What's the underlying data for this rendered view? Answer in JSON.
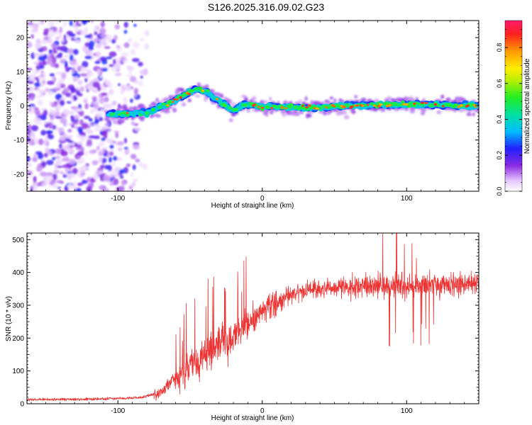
{
  "figure": {
    "title": "S126.2025.316.09.02.G23"
  },
  "chart_data": [
    {
      "type": "heatmap",
      "xlabel": "Height of straight line (km)",
      "ylabel": "Frequency (Hz)",
      "xlim": [
        -163,
        150
      ],
      "ylim": [
        -25,
        25
      ],
      "xticks": [
        -100,
        0,
        100
      ],
      "yticks": [
        -20,
        -10,
        0,
        10,
        20
      ],
      "colorbar": {
        "label": "Normalized spectral amplitude",
        "range": [
          0,
          0.95
        ],
        "ticks": [
          0.0,
          0.2,
          0.4,
          0.6,
          0.8
        ]
      },
      "ridge": {
        "description_points": [
          {
            "x": -105,
            "y": -2.5
          },
          {
            "x": -80,
            "y": -2.0
          },
          {
            "x": -68,
            "y": 0.0
          },
          {
            "x": -55,
            "y": 3.0
          },
          {
            "x": -45,
            "y": 5.0
          },
          {
            "x": -38,
            "y": 4.0
          },
          {
            "x": -30,
            "y": 1.5
          },
          {
            "x": -20,
            "y": -1.5
          },
          {
            "x": -12,
            "y": 0.5
          },
          {
            "x": 0,
            "y": -0.3
          },
          {
            "x": 40,
            "y": -0.5
          },
          {
            "x": 60,
            "y": 0.0
          },
          {
            "x": 100,
            "y": 0.5
          },
          {
            "x": 150,
            "y": 0.0
          }
        ]
      }
    },
    {
      "type": "line",
      "xlabel": "Height of straight line (km)",
      "ylabel": "SNR (10 * v/v)",
      "xlim": [
        -163,
        150
      ],
      "ylim": [
        0,
        520
      ],
      "xticks": [
        -100,
        0,
        100
      ],
      "yticks": [
        0,
        100,
        200,
        300,
        400,
        500
      ],
      "series": [
        {
          "name": "SNR",
          "color": "#ee3333",
          "trend_points": [
            {
              "x": -163,
              "y": 12
            },
            {
              "x": -120,
              "y": 14
            },
            {
              "x": -85,
              "y": 18
            },
            {
              "x": -70,
              "y": 35
            },
            {
              "x": -60,
              "y": 80
            },
            {
              "x": -50,
              "y": 110
            },
            {
              "x": -40,
              "y": 150
            },
            {
              "x": -30,
              "y": 175
            },
            {
              "x": -20,
              "y": 210
            },
            {
              "x": -10,
              "y": 245
            },
            {
              "x": 0,
              "y": 280
            },
            {
              "x": 10,
              "y": 310
            },
            {
              "x": 20,
              "y": 330
            },
            {
              "x": 30,
              "y": 345
            },
            {
              "x": 50,
              "y": 355
            },
            {
              "x": 80,
              "y": 360
            },
            {
              "x": 100,
              "y": 360
            },
            {
              "x": 130,
              "y": 365
            },
            {
              "x": 150,
              "y": 370
            }
          ],
          "peak_max": 510
        }
      ]
    }
  ]
}
